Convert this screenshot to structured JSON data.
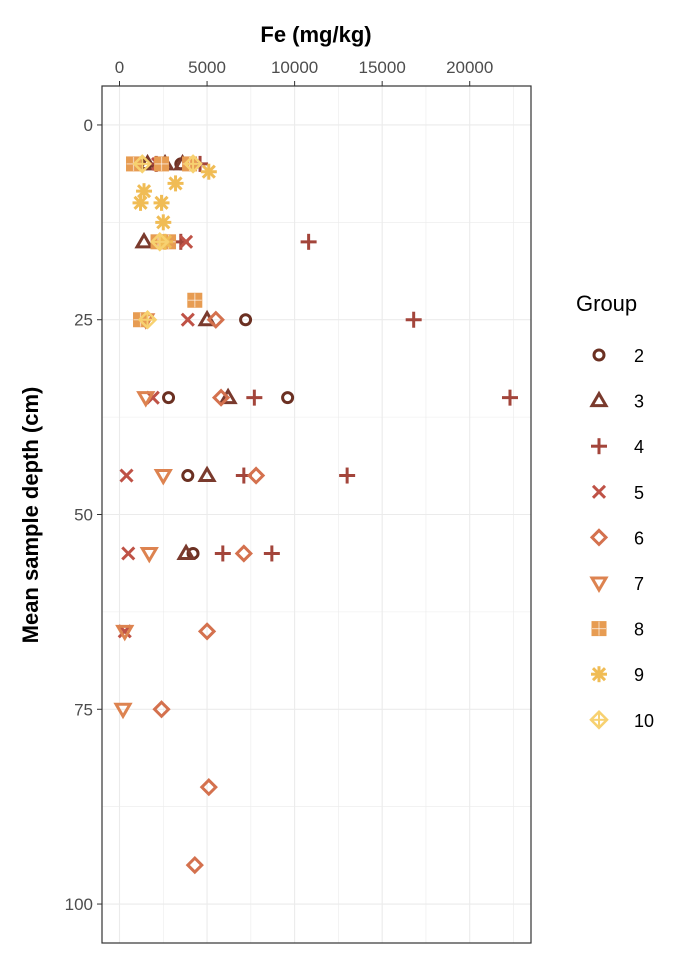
{
  "chart_data": {
    "type": "scatter",
    "title": "",
    "xlabel": "Fe (mg/kg)",
    "ylabel": "Mean sample depth (cm)",
    "x_axis_position": "top",
    "y_axis_reversed": true,
    "xlim": [
      -1000,
      23500
    ],
    "ylim": [
      -5,
      105
    ],
    "x_ticks": [
      0,
      5000,
      10000,
      15000,
      20000
    ],
    "x_tick_labels": [
      "0",
      "5000",
      "10000",
      "15000",
      "20000"
    ],
    "y_ticks": [
      0,
      25,
      50,
      75,
      100
    ],
    "y_tick_labels": [
      "0",
      "25",
      "50",
      "75",
      "100"
    ],
    "grid": true,
    "legend": {
      "title": "Group",
      "position": "right"
    },
    "series": [
      {
        "name": "2",
        "shape": "circle",
        "color": "#6b3022",
        "points": [
          [
            1500,
            5
          ],
          [
            2500,
            5
          ],
          [
            3500,
            5
          ],
          [
            2500,
            15
          ],
          [
            7200,
            25
          ],
          [
            2800,
            35
          ],
          [
            9600,
            35
          ],
          [
            3900,
            45
          ],
          [
            4200,
            55
          ]
        ]
      },
      {
        "name": "3",
        "shape": "triangle",
        "color": "#7a3a2d",
        "points": [
          [
            1600,
            5
          ],
          [
            2600,
            5
          ],
          [
            3600,
            5
          ],
          [
            1400,
            15
          ],
          [
            5000,
            25
          ],
          [
            6200,
            35
          ],
          [
            5000,
            45
          ],
          [
            3800,
            55
          ]
        ]
      },
      {
        "name": "4",
        "shape": "plus",
        "color": "#a3453b",
        "points": [
          [
            2100,
            5
          ],
          [
            4600,
            5
          ],
          [
            10800,
            15
          ],
          [
            3500,
            15
          ],
          [
            16800,
            25
          ],
          [
            7700,
            35
          ],
          [
            22300,
            35
          ],
          [
            13000,
            45
          ],
          [
            7100,
            45
          ],
          [
            5900,
            55
          ],
          [
            8700,
            55
          ]
        ]
      },
      {
        "name": "5",
        "shape": "x",
        "color": "#bf5246",
        "points": [
          [
            2200,
            5
          ],
          [
            3800,
            15
          ],
          [
            3900,
            25
          ],
          [
            1900,
            35
          ],
          [
            400,
            45
          ],
          [
            500,
            55
          ],
          [
            300,
            65
          ]
        ]
      },
      {
        "name": "6",
        "shape": "diamond",
        "color": "#d4714e",
        "points": [
          [
            5500,
            25
          ],
          [
            5800,
            35
          ],
          [
            7800,
            45
          ],
          [
            7100,
            55
          ],
          [
            5000,
            65
          ],
          [
            2400,
            75
          ],
          [
            5100,
            85
          ],
          [
            4300,
            95
          ]
        ]
      },
      {
        "name": "7",
        "shape": "triangle-down",
        "color": "#dd8350",
        "points": [
          [
            1500,
            25
          ],
          [
            1500,
            35
          ],
          [
            2500,
            45
          ],
          [
            1700,
            55
          ],
          [
            300,
            65
          ],
          [
            200,
            75
          ]
        ]
      },
      {
        "name": "8",
        "shape": "square-plus",
        "color": "#e79c52",
        "points": [
          [
            800,
            5
          ],
          [
            2400,
            5
          ],
          [
            4000,
            5
          ],
          [
            2200,
            15
          ],
          [
            2800,
            15
          ],
          [
            4300,
            22.5
          ],
          [
            1200,
            25
          ]
        ]
      },
      {
        "name": "9",
        "shape": "asterisk",
        "color": "#f0bc55",
        "points": [
          [
            5100,
            6
          ],
          [
            3200,
            7.5
          ],
          [
            1400,
            8.5
          ],
          [
            2400,
            10
          ],
          [
            1200,
            10
          ],
          [
            2500,
            12.5
          ],
          [
            2600,
            15
          ]
        ]
      },
      {
        "name": "10",
        "shape": "diamond-plus",
        "color": "#f7d170",
        "points": [
          [
            1300,
            5
          ],
          [
            4200,
            5
          ],
          [
            2300,
            15
          ],
          [
            1600,
            25
          ]
        ]
      }
    ]
  }
}
